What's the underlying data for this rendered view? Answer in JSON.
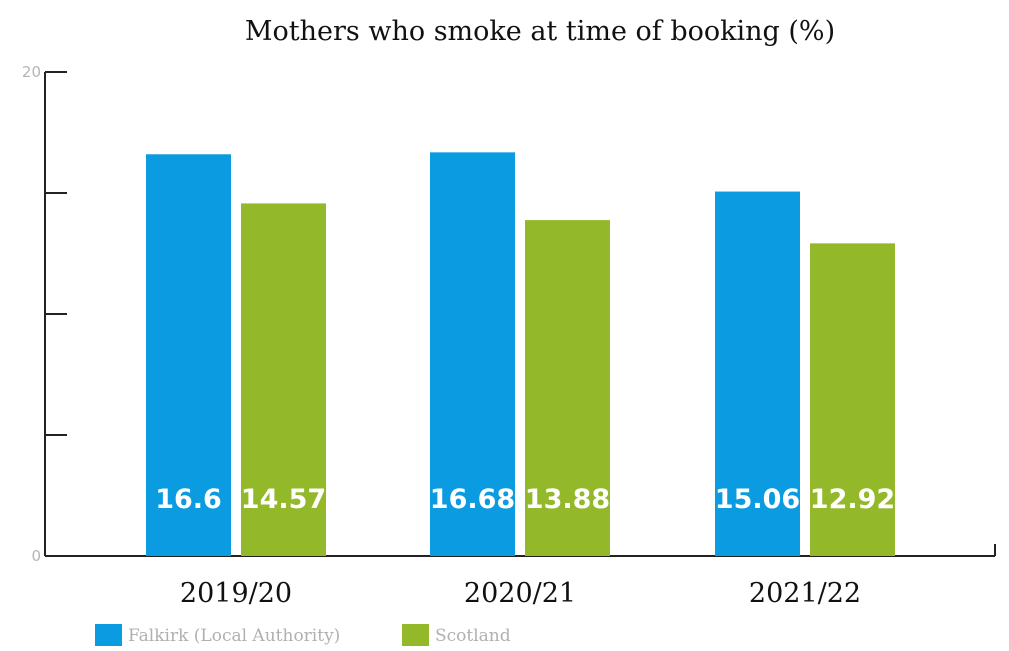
{
  "chart_data": {
    "type": "bar",
    "title": "Mothers who smoke at time of booking (%)",
    "categories": [
      "2019/20",
      "2020/21",
      "2021/22"
    ],
    "series": [
      {
        "name": "Falkirk (Local Authority)",
        "color": "#0a9be0",
        "values": [
          16.6,
          16.68,
          15.06
        ],
        "labels": [
          "16.6",
          "16.68",
          "15.06"
        ]
      },
      {
        "name": "Scotland",
        "color": "#93b82a",
        "values": [
          14.57,
          13.88,
          12.92
        ],
        "labels": [
          "14.57",
          "13.88",
          "12.92"
        ]
      }
    ],
    "ylim": [
      0,
      20
    ],
    "yticks": [
      0,
      5,
      10,
      15,
      20
    ],
    "ytick_labels": [
      "0",
      "",
      "",
      "",
      "20"
    ],
    "xlabel": "",
    "ylabel": "",
    "grid": false,
    "legend_position": "bottom-left"
  }
}
